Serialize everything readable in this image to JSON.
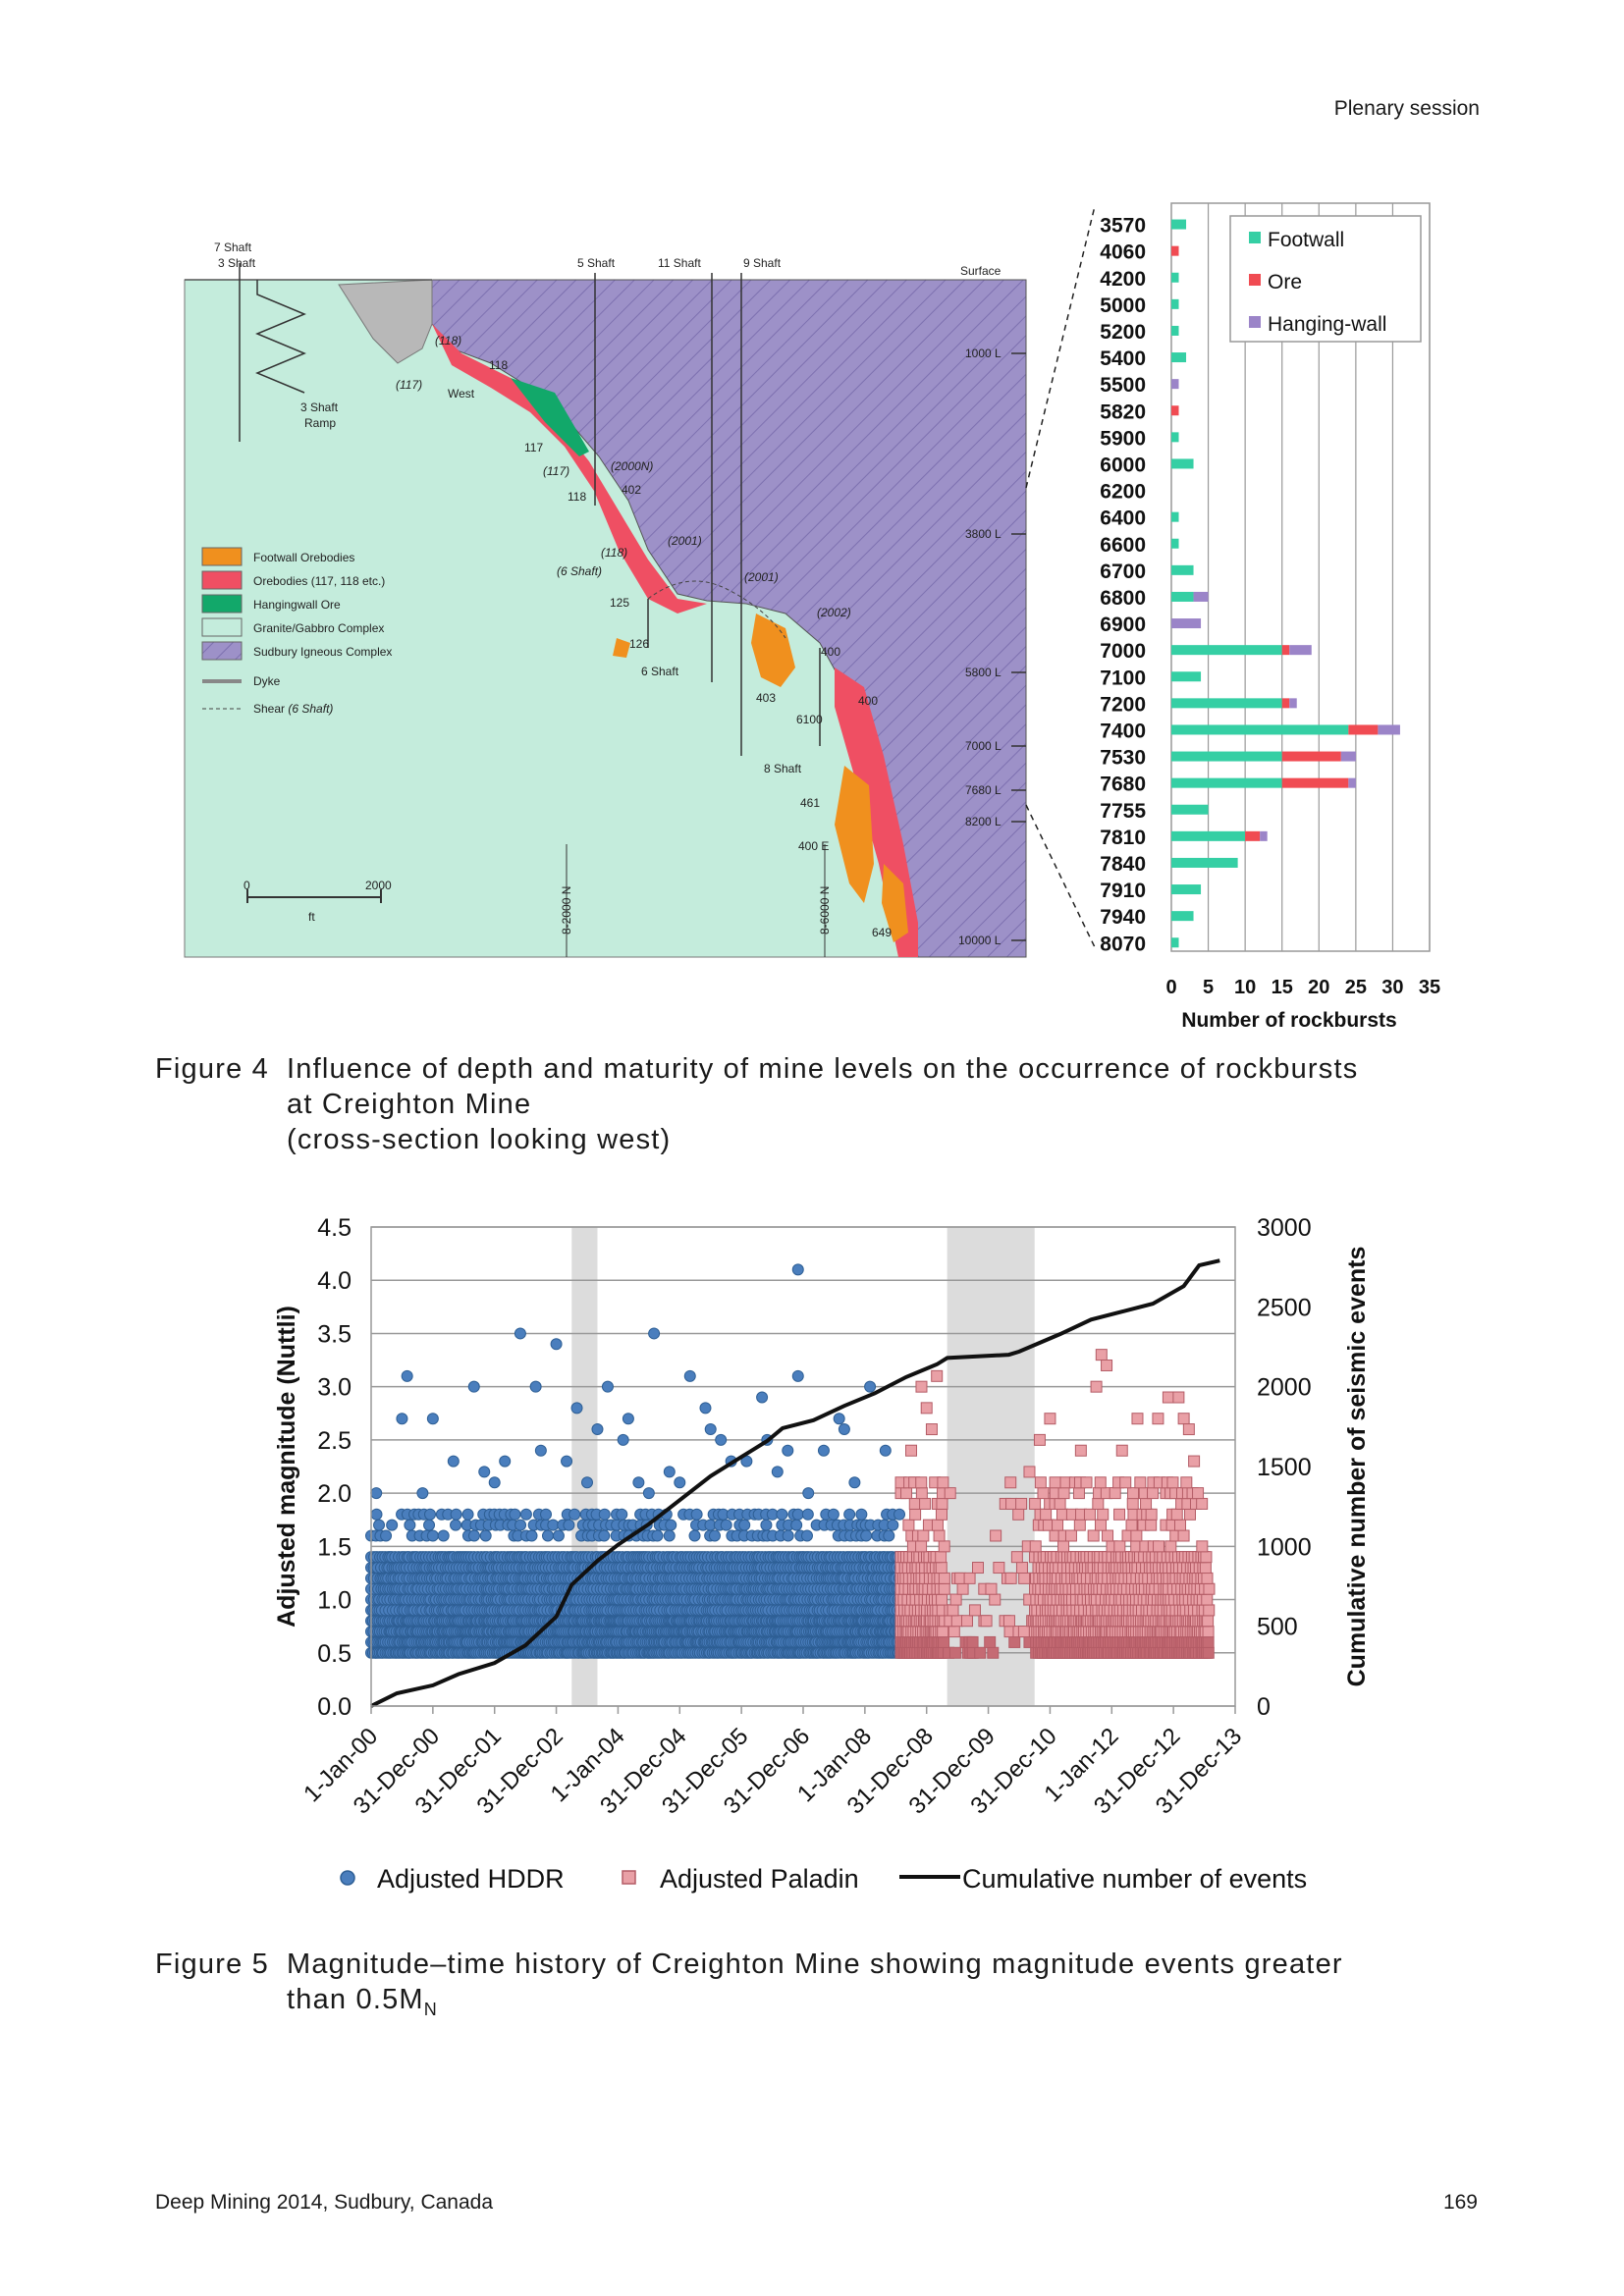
{
  "header": {
    "section": "Plenary session"
  },
  "footer": {
    "left": "Deep Mining 2014, Sudbury, Canada",
    "page": "169"
  },
  "figure4": {
    "caption_number": "Figure 4",
    "caption_line1": "Influence of depth and maturity of mine levels on the occurrence of rockbursts",
    "caption_line2": "at Creighton Mine",
    "caption_line3": "(cross-section looking west)",
    "section_labels": {
      "shaft7": "7 Shaft",
      "shaft3": "3 Shaft",
      "shaft5": "5 Shaft",
      "shaft11": "11 Shaft",
      "shaft9": "9 Shaft",
      "surface": "Surface",
      "ramp1": "3 Shaft",
      "ramp2": "Ramp",
      "o118a": "(118)",
      "o118b": "118",
      "o117a": "(117)",
      "west": "West",
      "o117b": "117",
      "o117c": "(117)",
      "o2000n": "(2000N)",
      "o402": "402",
      "o118c": "118",
      "o2001a": "(2001)",
      "o118d": "(118)",
      "shaft6label": "(6 Shaft)",
      "o125": "125",
      "o2001b": "(2001)",
      "o2002": "(2002)",
      "o126": "126",
      "shaft6": "6 Shaft",
      "o400a": "400",
      "o403": "403",
      "o6100": "6100",
      "o400b": "400",
      "shaft8": "8 Shaft",
      "o461": "461",
      "o400e": "400 E",
      "o649": "649",
      "l1000": "1000 L",
      "l3800": "3800 L",
      "l5800": "5800 L",
      "l7000": "7000 L",
      "l7680": "7680 L",
      "l8200": "8200 L",
      "l10000": "10000 L",
      "scale0": "0",
      "scale2000": "2000",
      "scaleft": "ft",
      "grid1": "8-2000 N",
      "grid2": "8-6000 N"
    },
    "map_legend": [
      {
        "label": "Footwall Orebodies",
        "color": "#f0901e"
      },
      {
        "label": "Orebodies (117, 118 etc.)",
        "color": "#ef4f63"
      },
      {
        "label": "Hangingwall Ore",
        "color": "#12a86a"
      },
      {
        "label": "Granite/Gabbro Complex",
        "color": "#c4ecdc"
      },
      {
        "label": "Sudbury Igneous Complex",
        "color": "#9d91c8"
      },
      {
        "label": "Dyke",
        "color": "#888888"
      },
      {
        "label": "Shear",
        "label_italic": "(6 Shaft)",
        "color": "#444444"
      }
    ],
    "chart_data": {
      "type": "bar",
      "orientation": "horizontal",
      "stacked": true,
      "categories": [
        "3570",
        "4060",
        "4200",
        "5000",
        "5200",
        "5400",
        "5500",
        "5820",
        "5900",
        "6000",
        "6200",
        "6400",
        "6600",
        "6700",
        "6800",
        "6900",
        "7000",
        "7100",
        "7200",
        "7400",
        "7530",
        "7680",
        "7755",
        "7810",
        "7840",
        "7910",
        "7940",
        "8070"
      ],
      "series": [
        {
          "name": "Footwall",
          "color": "#35cfa4",
          "values": [
            2,
            0,
            1,
            1,
            1,
            2,
            0,
            0,
            1,
            3,
            0,
            1,
            1,
            3,
            3,
            0,
            15,
            4,
            15,
            24,
            15,
            15,
            5,
            10,
            9,
            4,
            3,
            1
          ]
        },
        {
          "name": "Ore",
          "color": "#f04b52",
          "values": [
            0,
            1,
            0,
            0,
            0,
            0,
            0,
            1,
            0,
            0,
            0,
            0,
            0,
            0,
            0,
            0,
            1,
            0,
            1,
            4,
            8,
            9,
            0,
            2,
            0,
            0,
            0,
            0
          ]
        },
        {
          "name": "Hanging-wall",
          "color": "#9b84c8",
          "values": [
            0,
            0,
            0,
            0,
            0,
            0,
            1,
            0,
            0,
            0,
            0,
            0,
            0,
            0,
            2,
            4,
            3,
            0,
            1,
            3,
            2,
            1,
            0,
            1,
            0,
            0,
            0,
            0
          ]
        }
      ],
      "xlabel": "Number of rockbursts",
      "xlim": [
        0,
        35
      ],
      "xticks": [
        0,
        5,
        10,
        15,
        20,
        25,
        30,
        35
      ],
      "grid": true,
      "legend_position": "top-right"
    }
  },
  "figure5": {
    "caption_number": "Figure 5",
    "caption_line1": "Magnitude–time history of Creighton Mine showing magnitude events greater",
    "caption_line2_main": "than 0.5M",
    "caption_line2_sub": "N",
    "chart_data": {
      "type": "scatter",
      "ylabel": "Adjusted magnitude (Nuttli)",
      "y2label": "Cumulative number of seismic events",
      "ylim": [
        0,
        4.5
      ],
      "y2lim": [
        0,
        3000
      ],
      "yticks": [
        "0.0",
        "0.5",
        "1.0",
        "1.5",
        "2.0",
        "2.5",
        "3.0",
        "3.5",
        "4.0",
        "4.5"
      ],
      "y2ticks": [
        "0",
        "500",
        "1000",
        "1500",
        "2000",
        "2500",
        "3000"
      ],
      "xticks": [
        "1-Jan-00",
        "31-Dec-00",
        "31-Dec-01",
        "31-Dec-02",
        "1-Jan-04",
        "31-Dec-04",
        "31-Dec-05",
        "31-Dec-06",
        "1-Jan-08",
        "31-Dec-08",
        "31-Dec-09",
        "31-Dec-10",
        "1-Jan-12",
        "31-Dec-12",
        "31-Dec-13"
      ],
      "grid": true,
      "legend_position": "bottom",
      "shaded_periods": [
        [
          "2003-04",
          "2003-09"
        ],
        [
          "2009-05",
          "2010-10"
        ]
      ],
      "series": [
        {
          "name": "Adjusted HDDR",
          "marker": "circle",
          "color": "#4a7ebd",
          "range": [
            "2000-01",
            "2008-08"
          ],
          "density_levels": [
            0.5,
            0.6,
            0.7,
            0.8,
            0.9,
            1.0,
            1.1,
            1.2,
            1.3,
            1.4,
            1.6,
            1.7,
            1.8
          ],
          "scattered_points": [
            [
              "2000-02",
              2.0
            ],
            [
              "2000-08",
              3.1
            ],
            [
              "2000-07",
              2.7
            ],
            [
              "2001-01",
              2.7
            ],
            [
              "2001-09",
              3.0
            ],
            [
              "2002-06",
              3.5
            ],
            [
              "2003-01",
              3.4
            ],
            [
              "2002-09",
              3.0
            ],
            [
              "2003-05",
              2.8
            ],
            [
              "2003-11",
              3.0
            ],
            [
              "2004-08",
              3.5
            ],
            [
              "2005-03",
              3.1
            ],
            [
              "2005-06",
              2.8
            ],
            [
              "2006-05",
              2.9
            ],
            [
              "2006-12",
              4.1
            ],
            [
              "2006-12",
              3.1
            ],
            [
              "2006-06",
              2.5
            ],
            [
              "2007-08",
              2.7
            ],
            [
              "2008-02",
              3.0
            ],
            [
              "2002-03",
              2.3
            ],
            [
              "2003-09",
              2.6
            ],
            [
              "2004-02",
              2.5
            ],
            [
              "2005-09",
              2.5
            ],
            [
              "2006-08",
              2.2
            ],
            [
              "2007-02",
              2.0
            ],
            [
              "2004-05",
              2.1
            ],
            [
              "2001-05",
              2.3
            ],
            [
              "2000-11",
              2.0
            ],
            [
              "2002-01",
              2.1
            ],
            [
              "2003-03",
              2.3
            ],
            [
              "2004-11",
              2.2
            ],
            [
              "2005-01",
              2.1
            ],
            [
              "2005-11",
              2.3
            ],
            [
              "2007-05",
              2.4
            ],
            [
              "2007-11",
              2.1
            ],
            [
              "2001-11",
              2.2
            ],
            [
              "2002-10",
              2.4
            ],
            [
              "2003-07",
              2.1
            ],
            [
              "2004-03",
              2.7
            ],
            [
              "2004-07",
              2.0
            ],
            [
              "2005-07",
              2.6
            ],
            [
              "2006-02",
              2.3
            ],
            [
              "2006-10",
              2.4
            ],
            [
              "2007-09",
              2.6
            ],
            [
              "2008-05",
              2.4
            ]
          ]
        },
        {
          "name": "Adjusted Paladin",
          "marker": "square",
          "color": "#e9a0a6",
          "range": [
            "2008-08",
            "2013-08"
          ],
          "density_levels": [
            0.5,
            0.6,
            0.7,
            0.8,
            0.9,
            1.0,
            1.1,
            1.2,
            1.3,
            1.4,
            1.5,
            1.6,
            1.7,
            1.8,
            1.9,
            2.0,
            2.1
          ],
          "scattered_points": [
            [
              "2011-11",
              3.3
            ],
            [
              "2011-10",
              3.0
            ],
            [
              "2011-12",
              3.2
            ],
            [
              "2013-03",
              2.7
            ],
            [
              "2012-12",
              2.9
            ],
            [
              "2013-02",
              2.9
            ],
            [
              "2009-03",
              3.1
            ],
            [
              "2009-01",
              2.8
            ],
            [
              "2008-12",
              3.0
            ],
            [
              "2009-02",
              2.6
            ],
            [
              "2010-11",
              2.5
            ],
            [
              "2011-01",
              2.7
            ],
            [
              "2012-06",
              2.7
            ],
            [
              "2012-10",
              2.7
            ],
            [
              "2013-04",
              2.6
            ],
            [
              "2008-10",
              2.4
            ],
            [
              "2012-03",
              2.4
            ],
            [
              "2010-09",
              2.2
            ],
            [
              "2011-07",
              2.4
            ],
            [
              "2013-05",
              2.3
            ]
          ]
        },
        {
          "name": "Cumulative number of events",
          "type": "line",
          "color": "#111111",
          "points": [
            [
              "2000-01",
              0
            ],
            [
              "2000-06",
              80
            ],
            [
              "2001-01",
              130
            ],
            [
              "2001-06",
              200
            ],
            [
              "2002-01",
              270
            ],
            [
              "2002-07",
              380
            ],
            [
              "2003-01",
              560
            ],
            [
              "2003-04",
              760
            ],
            [
              "2003-09",
              910
            ],
            [
              "2004-01",
              1010
            ],
            [
              "2004-07",
              1140
            ],
            [
              "2005-01",
              1290
            ],
            [
              "2005-07",
              1440
            ],
            [
              "2006-01",
              1560
            ],
            [
              "2006-06",
              1660
            ],
            [
              "2006-09",
              1740
            ],
            [
              "2007-03",
              1790
            ],
            [
              "2007-09",
              1880
            ],
            [
              "2008-03",
              1960
            ],
            [
              "2008-09",
              2060
            ],
            [
              "2009-03",
              2140
            ],
            [
              "2009-05",
              2180
            ],
            [
              "2010-05",
              2200
            ],
            [
              "2010-07",
              2220
            ],
            [
              "2011-03",
              2330
            ],
            [
              "2011-09",
              2420
            ],
            [
              "2012-03",
              2470
            ],
            [
              "2012-09",
              2520
            ],
            [
              "2013-03",
              2630
            ],
            [
              "2013-06",
              2760
            ],
            [
              "2013-10",
              2790
            ]
          ]
        }
      ]
    }
  }
}
